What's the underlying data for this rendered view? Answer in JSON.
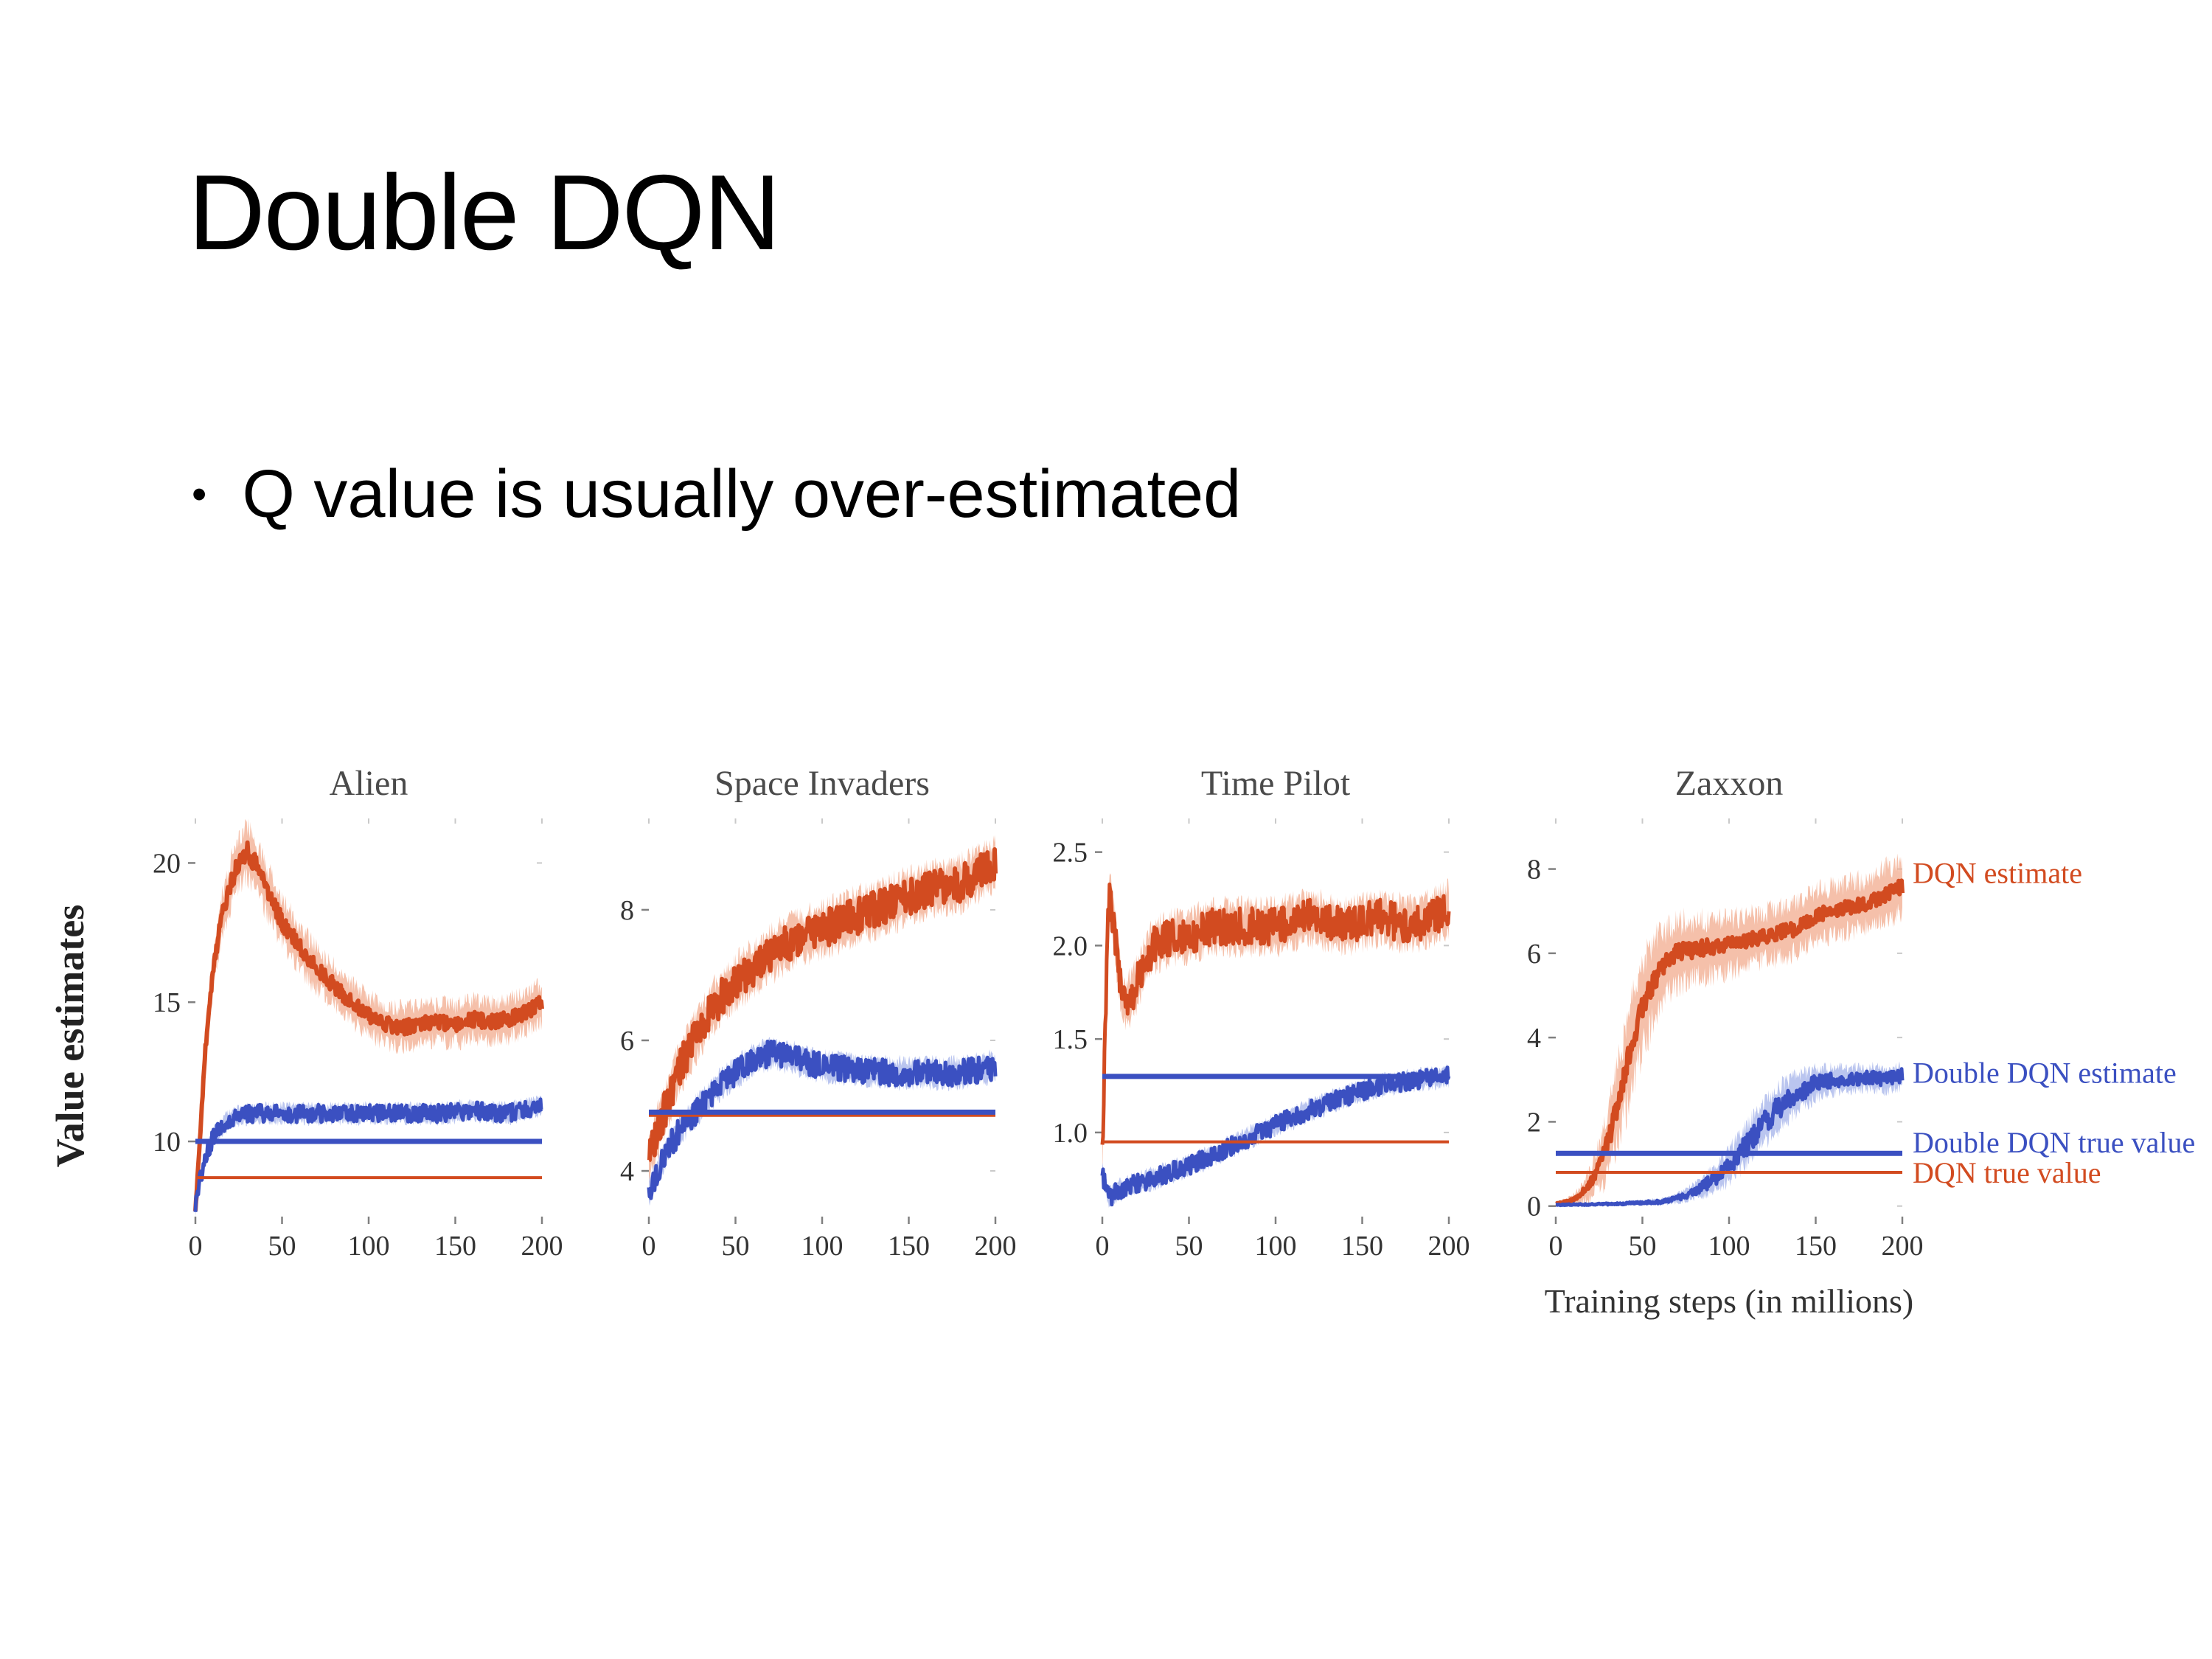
{
  "slide": {
    "title": "Double DQN",
    "bullet_marker": "•",
    "bullet": "Q value is usually over-estimated"
  },
  "chart_data": [
    {
      "type": "line",
      "title": "Alien",
      "ylabel": "Value estimates",
      "xlim": [
        0,
        200
      ],
      "ylim": [
        7.3,
        21.6
      ],
      "xticks": [
        "0",
        "50",
        "100",
        "150",
        "200"
      ],
      "yticks": [
        "10",
        "15",
        "20"
      ],
      "series": [
        {
          "name": "DQN estimate",
          "color": "#d24b20",
          "band_color": "#f2ab8d",
          "x": [
            0,
            3,
            6,
            10,
            15,
            20,
            25,
            30,
            35,
            40,
            50,
            60,
            70,
            80,
            90,
            100,
            110,
            120,
            130,
            140,
            150,
            160,
            170,
            180,
            190,
            200
          ],
          "y": [
            7.5,
            10.5,
            13.5,
            16.0,
            18.0,
            19.2,
            20.0,
            20.4,
            19.9,
            19.2,
            17.9,
            17.0,
            16.2,
            15.6,
            15.0,
            14.5,
            14.2,
            14.1,
            14.2,
            14.3,
            14.2,
            14.4,
            14.3,
            14.4,
            14.6,
            15.0
          ],
          "band": [
            0.2,
            0.4,
            0.7,
            0.9,
            1.1,
            1.2,
            1.3,
            1.3,
            1.3,
            1.25,
            1.2,
            1.15,
            1.1,
            1.05,
            1.0,
            1.0,
            1.0,
            1.0,
            1.0,
            1.0,
            1.0,
            1.0,
            1.0,
            1.0,
            1.0,
            1.0
          ],
          "noise": 0.35,
          "width": 6,
          "seed": 11
        },
        {
          "name": "Double DQN estimate",
          "color": "#3b50c1",
          "band_color": "#a3b2ea",
          "x": [
            0,
            3,
            6,
            10,
            15,
            20,
            30,
            40,
            60,
            80,
            100,
            120,
            140,
            160,
            180,
            200
          ],
          "y": [
            7.6,
            8.7,
            9.5,
            10.1,
            10.5,
            10.8,
            11.0,
            11.0,
            11.0,
            11.0,
            11.0,
            11.0,
            11.0,
            11.1,
            11.0,
            11.3
          ],
          "band": 0.45,
          "noise": 0.32,
          "width": 5,
          "seed": 12
        }
      ],
      "hlines": [
        {
          "name": "Double DQN true value",
          "y": 10.0,
          "color": "#3b50c1",
          "width": 7
        },
        {
          "name": "DQN true value",
          "y": 8.7,
          "color": "#d24b20",
          "width": 4
        }
      ]
    },
    {
      "type": "line",
      "title": "Space Invaders",
      "xlim": [
        0,
        200
      ],
      "ylim": [
        3.3,
        9.4
      ],
      "xticks": [
        "0",
        "50",
        "100",
        "150",
        "200"
      ],
      "yticks": [
        "4",
        "6",
        "8"
      ],
      "series": [
        {
          "name": "DQN estimate",
          "color": "#d24b20",
          "band_color": "#f2ab8d",
          "x": [
            0,
            5,
            10,
            15,
            20,
            30,
            40,
            50,
            60,
            80,
            100,
            120,
            140,
            160,
            180,
            200
          ],
          "y": [
            4.2,
            4.6,
            5.0,
            5.4,
            5.7,
            6.2,
            6.6,
            6.9,
            7.1,
            7.5,
            7.7,
            7.9,
            8.1,
            8.3,
            8.4,
            8.7
          ],
          "band": 0.5,
          "noise": 0.28,
          "width": 6,
          "seed": 21
        },
        {
          "name": "Double DQN estimate",
          "color": "#3b50c1",
          "band_color": "#a3b2ea",
          "x": [
            0,
            5,
            10,
            15,
            20,
            30,
            40,
            50,
            60,
            70,
            80,
            100,
            120,
            140,
            160,
            180,
            200
          ],
          "y": [
            3.7,
            4.0,
            4.3,
            4.5,
            4.7,
            5.0,
            5.3,
            5.5,
            5.7,
            5.8,
            5.75,
            5.6,
            5.55,
            5.5,
            5.5,
            5.5,
            5.6
          ],
          "band": 0.28,
          "noise": 0.2,
          "width": 5,
          "seed": 22
        }
      ],
      "hlines": [
        {
          "name": "DQN true value",
          "y": 4.85,
          "color": "#d24b20",
          "width": 4
        },
        {
          "name": "Double DQN true value",
          "y": 4.9,
          "color": "#3b50c1",
          "width": 7
        }
      ]
    },
    {
      "type": "line",
      "title": "Time Pilot",
      "xlim": [
        0,
        200
      ],
      "ylim": [
        0.55,
        2.68
      ],
      "xticks": [
        "0",
        "50",
        "100",
        "150",
        "200"
      ],
      "yticks": [
        "1.0",
        "1.5",
        "2.0",
        "2.5"
      ],
      "series": [
        {
          "name": "DQN estimate",
          "color": "#d24b20",
          "band_color": "#f2ab8d",
          "x": [
            0,
            2,
            4,
            6,
            9,
            12,
            16,
            20,
            25,
            30,
            40,
            50,
            60,
            80,
            100,
            120,
            140,
            160,
            180,
            200
          ],
          "y": [
            0.9,
            1.7,
            2.3,
            2.15,
            1.9,
            1.7,
            1.72,
            1.8,
            1.92,
            2.0,
            2.05,
            2.05,
            2.1,
            2.1,
            2.1,
            2.15,
            2.1,
            2.15,
            2.1,
            2.2
          ],
          "band": 0.17,
          "noise": 0.1,
          "width": 5,
          "seed": 31
        },
        {
          "name": "Double DQN estimate",
          "color": "#3b50c1",
          "band_color": "#a3b2ea",
          "x": [
            0,
            4,
            8,
            15,
            25,
            40,
            60,
            80,
            100,
            120,
            140,
            160,
            180,
            200
          ],
          "y": [
            0.78,
            0.65,
            0.68,
            0.71,
            0.74,
            0.79,
            0.86,
            0.95,
            1.04,
            1.12,
            1.19,
            1.25,
            1.28,
            1.3
          ],
          "band": 0.07,
          "noise": 0.05,
          "width": 5,
          "seed": 32
        }
      ],
      "hlines": [
        {
          "name": "DQN true value",
          "y": 0.95,
          "color": "#d24b20",
          "width": 4
        },
        {
          "name": "Double DQN true value",
          "y": 1.3,
          "color": "#3b50c1",
          "width": 7
        }
      ]
    },
    {
      "type": "line",
      "title": "Zaxxon",
      "xlabel": "Training steps (in millions)",
      "xlim": [
        0,
        200
      ],
      "ylim": [
        -0.25,
        9.2
      ],
      "xticks": [
        "0",
        "50",
        "100",
        "150",
        "200"
      ],
      "yticks": [
        "0",
        "2",
        "4",
        "6",
        "8"
      ],
      "series": [
        {
          "name": "DQN estimate",
          "color": "#d24b20",
          "band_color": "#f2ab8d",
          "x": [
            0,
            10,
            15,
            20,
            25,
            30,
            35,
            40,
            45,
            50,
            55,
            60,
            70,
            80,
            90,
            100,
            110,
            120,
            130,
            140,
            150,
            160,
            170,
            180,
            190,
            200
          ],
          "y": [
            0.05,
            0.15,
            0.3,
            0.55,
            0.95,
            1.5,
            2.3,
            3.2,
            4.0,
            4.7,
            5.2,
            5.6,
            6.0,
            6.1,
            6.15,
            6.2,
            6.3,
            6.4,
            6.5,
            6.6,
            6.9,
            7.0,
            7.1,
            7.2,
            7.4,
            7.6
          ],
          "band": [
            0.05,
            0.15,
            0.3,
            0.5,
            0.8,
            1.1,
            1.3,
            1.5,
            1.5,
            1.45,
            1.35,
            1.25,
            1.1,
            1.0,
            0.95,
            0.9,
            0.85,
            0.85,
            0.85,
            0.85,
            0.85,
            0.85,
            0.85,
            0.85,
            0.9,
            0.9
          ],
          "noise": 0.3,
          "width": 6,
          "seed": 41
        },
        {
          "name": "Double DQN estimate",
          "color": "#3b50c1",
          "band_color": "#a3b2ea",
          "x": [
            0,
            20,
            40,
            60,
            70,
            80,
            90,
            100,
            110,
            120,
            130,
            140,
            150,
            160,
            170,
            180,
            190,
            200
          ],
          "y": [
            0.03,
            0.04,
            0.06,
            0.1,
            0.18,
            0.35,
            0.6,
            0.95,
            1.45,
            1.95,
            2.4,
            2.7,
            2.9,
            3.0,
            3.0,
            3.05,
            3.0,
            3.1
          ],
          "band": [
            0.03,
            0.04,
            0.06,
            0.1,
            0.15,
            0.25,
            0.4,
            0.55,
            0.65,
            0.7,
            0.7,
            0.6,
            0.5,
            0.45,
            0.4,
            0.4,
            0.4,
            0.4
          ],
          "noise": 0.28,
          "width": 5,
          "seed": 42
        }
      ],
      "hlines": [
        {
          "name": "DQN true value",
          "y": 0.8,
          "color": "#d24b20",
          "width": 4
        },
        {
          "name": "Double DQN true value",
          "y": 1.25,
          "color": "#3b50c1",
          "width": 7
        }
      ],
      "right_labels": [
        {
          "text": "DQN estimate",
          "color": "#d24b20",
          "y": 7.9
        },
        {
          "text": "Double DQN estimate",
          "color": "#3b50c1",
          "y": 3.15
        },
        {
          "text": "Double DQN true value",
          "color": "#3b50c1",
          "y": 1.5
        },
        {
          "text": "DQN true value",
          "color": "#d24b20",
          "y": 0.78
        }
      ]
    }
  ]
}
